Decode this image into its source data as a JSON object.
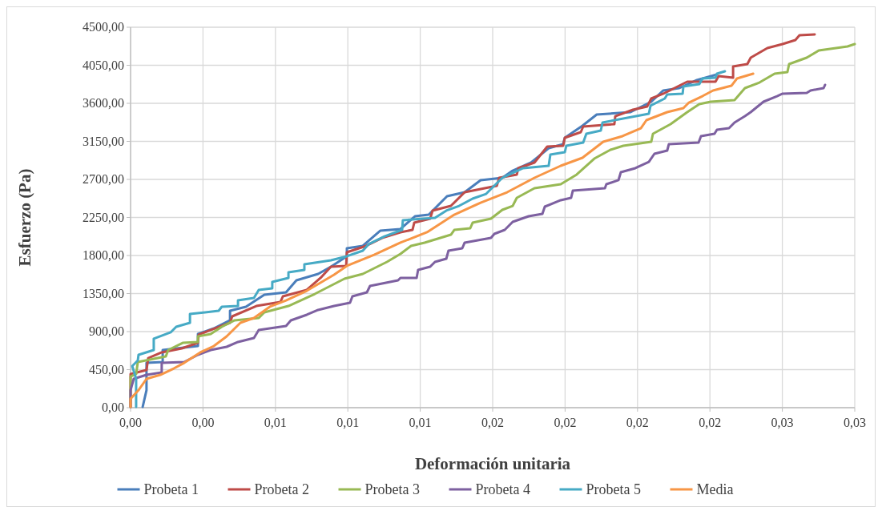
{
  "chart_data": {
    "type": "line",
    "xlabel": "Deformación unitaria",
    "ylabel": "Esfuerzo (Pa)",
    "xlim": [
      0,
      0.03
    ],
    "ylim": [
      0,
      4500
    ],
    "xticks": [
      {
        "value": 0,
        "label": "0,00"
      },
      {
        "value": 0.003,
        "label": "0,00"
      },
      {
        "value": 0.006,
        "label": "0,01"
      },
      {
        "value": 0.009,
        "label": "0,01"
      },
      {
        "value": 0.012,
        "label": "0,01"
      },
      {
        "value": 0.015,
        "label": "0,02"
      },
      {
        "value": 0.018,
        "label": "0,02"
      },
      {
        "value": 0.021,
        "label": "0,02"
      },
      {
        "value": 0.024,
        "label": "0,02"
      },
      {
        "value": 0.027,
        "label": "0,03"
      },
      {
        "value": 0.03,
        "label": "0,03"
      }
    ],
    "yticks": [
      {
        "value": 0,
        "label": "0,00"
      },
      {
        "value": 450,
        "label": "450,00"
      },
      {
        "value": 900,
        "label": "900,00"
      },
      {
        "value": 1350,
        "label": "1350,00"
      },
      {
        "value": 1800,
        "label": "1800,00"
      },
      {
        "value": 2250,
        "label": "2250,00"
      },
      {
        "value": 2700,
        "label": "2700,00"
      },
      {
        "value": 3150,
        "label": "3150,00"
      },
      {
        "value": 3600,
        "label": "3600,00"
      },
      {
        "value": 4050,
        "label": "4050,00"
      },
      {
        "value": 4500,
        "label": "4500,00"
      }
    ],
    "grid": true,
    "legend": "bottom",
    "marker": "none",
    "line_style": "solid",
    "series": [
      {
        "name": "Probeta 1",
        "color": "#4a7ebb",
        "x": [
          0.0005,
          0.00066,
          0.00066,
          0.00133,
          0.00133,
          0.00279,
          0.00279,
          0.00345,
          0.00412,
          0.00412,
          0.00478,
          0.00554,
          0.00644,
          0.00687,
          0.00777,
          0.0083,
          0.00896,
          0.00896,
          0.00962,
          0.01035,
          0.01118,
          0.01178,
          0.01235,
          0.01311,
          0.01384,
          0.0145,
          0.0154,
          0.01583,
          0.01659,
          0.01732,
          0.01792,
          0.01799,
          0.01872,
          0.01931,
          0.02071,
          0.02157,
          0.02207,
          0.02273,
          0.02346,
          0.02429
        ],
        "values": [
          9,
          208,
          530,
          540,
          682,
          729,
          872,
          938,
          1033,
          1146,
          1194,
          1336,
          1364,
          1506,
          1582,
          1667,
          1791,
          1885,
          1914,
          2094,
          2113,
          2264,
          2283,
          2501,
          2548,
          2691,
          2719,
          2804,
          2899,
          3069,
          3117,
          3193,
          3335,
          3467,
          3496,
          3619,
          3752,
          3780,
          3875,
          3941
        ]
      },
      {
        "name": "Probeta 2",
        "color": "#be4b48",
        "x": [
          0,
          0,
          0.00066,
          0.00073,
          0.00129,
          0.00212,
          0.00279,
          0.00282,
          0.00322,
          0.00412,
          0.00421,
          0.00521,
          0.00621,
          0.00631,
          0.0073,
          0.00787,
          0.0083,
          0.00893,
          0.00896,
          0.00976,
          0.01042,
          0.01118,
          0.01168,
          0.01175,
          0.01241,
          0.01251,
          0.01327,
          0.01384,
          0.01517,
          0.01527,
          0.016,
          0.01606,
          0.01673,
          0.01726,
          0.01792,
          0.01799,
          0.01865,
          0.01875,
          0.02004,
          0.02008,
          0.02081,
          0.0214,
          0.02157,
          0.02207,
          0.02306,
          0.02423,
          0.02436,
          0.02496,
          0.02496,
          0.02555,
          0.02569,
          0.02638,
          0.02701,
          0.02754,
          0.02771,
          0.02834
        ],
        "values": [
          9,
          398,
          445,
          587,
          654,
          701,
          767,
          862,
          909,
          1004,
          1080,
          1203,
          1251,
          1317,
          1393,
          1535,
          1667,
          1677,
          1838,
          1914,
          2008,
          2075,
          2103,
          2188,
          2236,
          2331,
          2387,
          2548,
          2624,
          2719,
          2757,
          2833,
          2899,
          3088,
          3098,
          3193,
          3259,
          3325,
          3354,
          3448,
          3524,
          3562,
          3657,
          3714,
          3856,
          3856,
          3922,
          3903,
          4036,
          4064,
          4140,
          4254,
          4301,
          4348,
          4405,
          4415
        ]
      },
      {
        "name": "Probeta 3",
        "color": "#98b954",
        "x": [
          0,
          0,
          0.00023,
          0.0003,
          0.00146,
          0.00156,
          0.00216,
          0.00279,
          0.00279,
          0.00332,
          0.00378,
          0.00431,
          0.00531,
          0.00554,
          0.00654,
          0.00763,
          0.00886,
          0.00962,
          0.01062,
          0.01118,
          0.01162,
          0.01218,
          0.01327,
          0.01341,
          0.01407,
          0.01417,
          0.01493,
          0.0154,
          0.01583,
          0.016,
          0.01673,
          0.01782,
          0.01848,
          0.01921,
          0.01988,
          0.02041,
          0.02157,
          0.02164,
          0.02237,
          0.02306,
          0.02356,
          0.02403,
          0.02502,
          0.02545,
          0.02605,
          0.02668,
          0.02721,
          0.02728,
          0.02801,
          0.02851,
          0.0297,
          0.03
        ],
        "values": [
          9,
          369,
          398,
          540,
          606,
          682,
          767,
          777,
          843,
          872,
          957,
          1033,
          1061,
          1127,
          1203,
          1345,
          1525,
          1582,
          1724,
          1819,
          1914,
          1952,
          2046,
          2103,
          2122,
          2188,
          2236,
          2340,
          2387,
          2482,
          2596,
          2643,
          2757,
          2946,
          3051,
          3098,
          3145,
          3240,
          3354,
          3496,
          3591,
          3619,
          3638,
          3780,
          3846,
          3951,
          3969,
          4064,
          4140,
          4225,
          4273,
          4301
        ]
      },
      {
        "name": "Probeta 4",
        "color": "#7d60a0",
        "x": [
          0,
          0,
          0.00013,
          0.00066,
          0.00129,
          0.00129,
          0.00222,
          0.00279,
          0.00332,
          0.00398,
          0.00445,
          0.00511,
          0.00531,
          0.00644,
          0.00664,
          0.0073,
          0.00777,
          0.00843,
          0.00909,
          0.00919,
          0.00979,
          0.00992,
          0.01108,
          0.01118,
          0.01185,
          0.01191,
          0.01241,
          0.01261,
          0.01308,
          0.01317,
          0.01374,
          0.01384,
          0.01493,
          0.01507,
          0.0155,
          0.01583,
          0.01649,
          0.01706,
          0.01716,
          0.01782,
          0.01825,
          0.01832,
          0.01965,
          0.01971,
          0.02021,
          0.02031,
          0.02091,
          0.02147,
          0.0217,
          0.02223,
          0.0223,
          0.02353,
          0.02363,
          0.02419,
          0.02429,
          0.02479,
          0.02502,
          0.02545,
          0.02569,
          0.02622,
          0.02678,
          0.02701,
          0.02801,
          0.02817,
          0.02871,
          0.02877
        ],
        "values": [
          9,
          208,
          341,
          388,
          417,
          530,
          540,
          625,
          682,
          720,
          777,
          824,
          919,
          966,
          1033,
          1099,
          1156,
          1203,
          1241,
          1317,
          1364,
          1440,
          1506,
          1535,
          1535,
          1629,
          1667,
          1724,
          1762,
          1857,
          1885,
          1952,
          2008,
          2056,
          2103,
          2198,
          2264,
          2293,
          2378,
          2454,
          2482,
          2567,
          2596,
          2643,
          2691,
          2785,
          2833,
          2908,
          3003,
          3041,
          3117,
          3136,
          3212,
          3240,
          3287,
          3306,
          3373,
          3448,
          3496,
          3619,
          3685,
          3714,
          3723,
          3752,
          3780,
          3818
        ]
      },
      {
        "name": "Probeta 5",
        "color": "#46aac5",
        "x": [
          0.00023,
          0.00023,
          7e-05,
          0.0003,
          0.00033,
          0.00096,
          0.00096,
          0.00166,
          0.00189,
          0.00246,
          0.00246,
          0.00365,
          0.00378,
          0.00445,
          0.00445,
          0.00511,
          0.00531,
          0.00587,
          0.00587,
          0.00654,
          0.00654,
          0.0072,
          0.0072,
          0.0083,
          0.00896,
          0.00962,
          0.00986,
          0.01052,
          0.01125,
          0.01128,
          0.01261,
          0.01308,
          0.01361,
          0.01417,
          0.01473,
          0.0154,
          0.01626,
          0.01732,
          0.01739,
          0.01799,
          0.01805,
          0.01875,
          0.01888,
          0.01948,
          0.01955,
          0.02147,
          0.02154,
          0.02213,
          0.02223,
          0.02287,
          0.0229,
          0.02356,
          0.02369,
          0.02423,
          0.02429,
          0.02462
        ],
        "values": [
          9,
          341,
          493,
          559,
          625,
          682,
          815,
          891,
          957,
          1004,
          1108,
          1146,
          1194,
          1203,
          1269,
          1298,
          1393,
          1412,
          1487,
          1535,
          1601,
          1629,
          1696,
          1743,
          1791,
          1857,
          1933,
          2027,
          2103,
          2217,
          2245,
          2331,
          2387,
          2473,
          2529,
          2719,
          2833,
          2861,
          2994,
          3022,
          3098,
          3136,
          3240,
          3278,
          3373,
          3477,
          3572,
          3657,
          3704,
          3714,
          3799,
          3827,
          3894,
          3903,
          3951,
          3979
        ]
      },
      {
        "name": "Media",
        "color": "#f79646",
        "x": [
          0,
          0,
          0.00033,
          0.00066,
          0.00123,
          0.00179,
          0.00222,
          0.00289,
          0.00345,
          0.00398,
          0.00455,
          0.00511,
          0.00577,
          0.00644,
          0.0073,
          0.00843,
          0.00896,
          0.01009,
          0.01118,
          0.01228,
          0.01341,
          0.0145,
          0.0156,
          0.01673,
          0.01782,
          0.01872,
          0.01915,
          0.01958,
          0.02038,
          0.02114,
          0.02137,
          0.02223,
          0.0229,
          0.02313,
          0.02369,
          0.02413,
          0.02489,
          0.02512,
          0.02579
        ],
        "values": [
          9,
          104,
          208,
          341,
          388,
          464,
          530,
          654,
          729,
          843,
          1004,
          1061,
          1194,
          1269,
          1383,
          1573,
          1677,
          1809,
          1952,
          2075,
          2283,
          2425,
          2548,
          2719,
          2861,
          2956,
          3051,
          3145,
          3212,
          3306,
          3401,
          3496,
          3543,
          3609,
          3685,
          3752,
          3808,
          3894,
          3951
        ]
      }
    ]
  }
}
